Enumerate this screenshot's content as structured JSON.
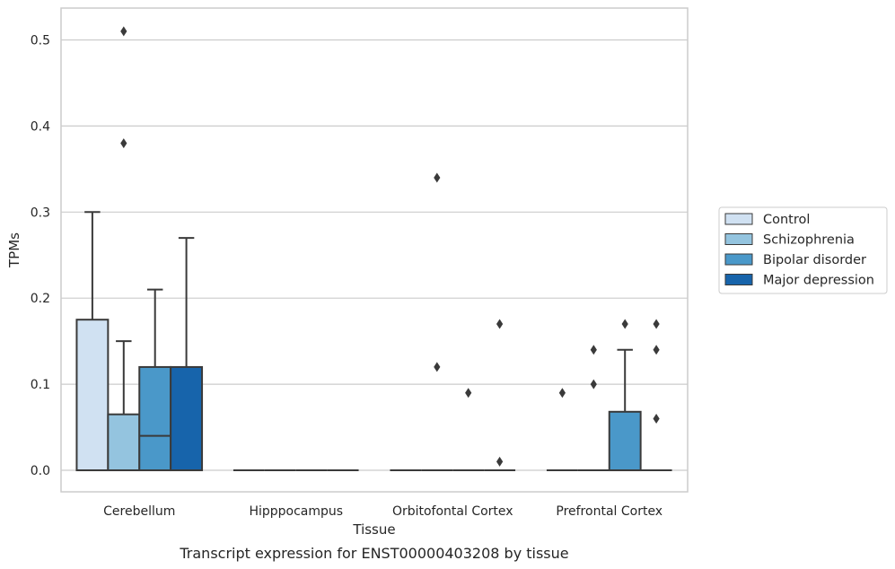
{
  "chart_data": {
    "type": "box",
    "title": "",
    "caption": "Transcript expression for ENST00000403208 by tissue",
    "xlabel": "Tissue",
    "ylabel": "TPMs",
    "ylim": [
      -0.025,
      0.537
    ],
    "yticks": [
      0.0,
      0.1,
      0.2,
      0.3,
      0.4,
      0.5
    ],
    "ytick_labels": [
      "0.0",
      "0.1",
      "0.2",
      "0.3",
      "0.4",
      "0.5"
    ],
    "grid": "horizontal",
    "legend_position": "right",
    "categories": [
      "Cerebellum",
      "Hipppocampus",
      "Orbitofontal Cortex",
      "Prefrontal Cortex"
    ],
    "series": [
      {
        "name": "Control",
        "color": "#d0e1f2",
        "boxes": [
          {
            "q1": 0.0,
            "median": 0.0,
            "q3": 0.175,
            "whisker_low": 0.0,
            "whisker_high": 0.3,
            "outliers": []
          },
          {
            "q1": 0.0,
            "median": 0.0,
            "q3": 0.0,
            "whisker_low": 0.0,
            "whisker_high": 0.0,
            "outliers": []
          },
          {
            "q1": 0.0,
            "median": 0.0,
            "q3": 0.0,
            "whisker_low": 0.0,
            "whisker_high": 0.0,
            "outliers": []
          },
          {
            "q1": 0.0,
            "median": 0.0,
            "q3": 0.0,
            "whisker_low": 0.0,
            "whisker_high": 0.0,
            "outliers": [
              0.09
            ]
          }
        ]
      },
      {
        "name": "Schizophrenia",
        "color": "#94c4df",
        "boxes": [
          {
            "q1": 0.0,
            "median": 0.0,
            "q3": 0.065,
            "whisker_low": 0.0,
            "whisker_high": 0.15,
            "outliers": [
              0.38,
              0.51
            ]
          },
          {
            "q1": 0.0,
            "median": 0.0,
            "q3": 0.0,
            "whisker_low": 0.0,
            "whisker_high": 0.0,
            "outliers": []
          },
          {
            "q1": 0.0,
            "median": 0.0,
            "q3": 0.0,
            "whisker_low": 0.0,
            "whisker_high": 0.0,
            "outliers": [
              0.34,
              0.12
            ]
          },
          {
            "q1": 0.0,
            "median": 0.0,
            "q3": 0.0,
            "whisker_low": 0.0,
            "whisker_high": 0.0,
            "outliers": [
              0.14,
              0.1
            ]
          }
        ]
      },
      {
        "name": "Bipolar disorder",
        "color": "#4a98c9",
        "boxes": [
          {
            "q1": 0.0,
            "median": 0.04,
            "q3": 0.12,
            "whisker_low": 0.0,
            "whisker_high": 0.21,
            "outliers": []
          },
          {
            "q1": 0.0,
            "median": 0.0,
            "q3": 0.0,
            "whisker_low": 0.0,
            "whisker_high": 0.0,
            "outliers": []
          },
          {
            "q1": 0.0,
            "median": 0.0,
            "q3": 0.0,
            "whisker_low": 0.0,
            "whisker_high": 0.0,
            "outliers": [
              0.09
            ]
          },
          {
            "q1": 0.0,
            "median": 0.0,
            "q3": 0.068,
            "whisker_low": 0.0,
            "whisker_high": 0.14,
            "outliers": [
              0.17
            ]
          }
        ]
      },
      {
        "name": "Major depression",
        "color": "#1764ab",
        "boxes": [
          {
            "q1": 0.0,
            "median": 0.0,
            "q3": 0.12,
            "whisker_low": 0.0,
            "whisker_high": 0.27,
            "outliers": []
          },
          {
            "q1": 0.0,
            "median": 0.0,
            "q3": 0.0,
            "whisker_low": 0.0,
            "whisker_high": 0.0,
            "outliers": []
          },
          {
            "q1": 0.0,
            "median": 0.0,
            "q3": 0.0,
            "whisker_low": 0.0,
            "whisker_high": 0.0,
            "outliers": [
              0.17,
              0.01
            ]
          },
          {
            "q1": 0.0,
            "median": 0.0,
            "q3": 0.0,
            "whisker_low": 0.0,
            "whisker_high": 0.0,
            "outliers": [
              0.17,
              0.14,
              0.06
            ]
          }
        ]
      }
    ]
  },
  "colors": {
    "edge": "#3a3a3a",
    "grid": "#cccccc",
    "frame": "#cccccc",
    "text": "#262626"
  }
}
